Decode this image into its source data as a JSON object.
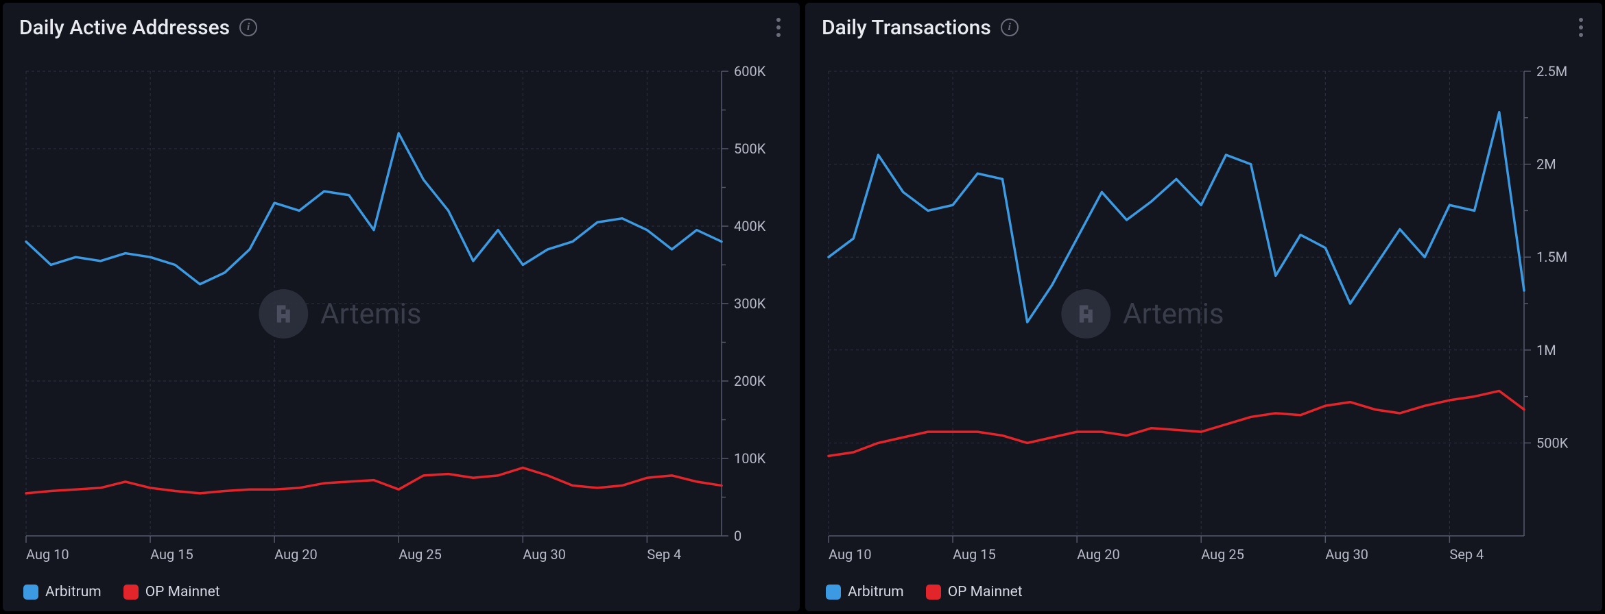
{
  "watermark_text": "Artemis",
  "panels": [
    {
      "title": "Daily Active Addresses",
      "chart": {
        "type": "line",
        "background_color": "#13151f",
        "grid_color": "#2e3140",
        "axis_color": "#555a6b",
        "tick_label_color": "#b8bcc8",
        "tick_fontsize": 20,
        "line_width": 3.5,
        "x_categories": [
          "Aug 10",
          "Aug 11",
          "Aug 12",
          "Aug 13",
          "Aug 14",
          "Aug 15",
          "Aug 16",
          "Aug 17",
          "Aug 18",
          "Aug 19",
          "Aug 20",
          "Aug 21",
          "Aug 22",
          "Aug 23",
          "Aug 24",
          "Aug 25",
          "Aug 26",
          "Aug 27",
          "Aug 28",
          "Aug 29",
          "Aug 30",
          "Aug 31",
          "Sep 1",
          "Sep 2",
          "Sep 3",
          "Sep 4",
          "Sep 5",
          "Sep 6",
          "Sep 7"
        ],
        "x_tick_indices": [
          0,
          5,
          10,
          15,
          20,
          25
        ],
        "x_tick_labels": [
          "Aug 10",
          "Aug 15",
          "Aug 20",
          "Aug 25",
          "Aug 30",
          "Sep 4"
        ],
        "ylim": [
          0,
          600000
        ],
        "y_ticks": [
          0,
          100000,
          200000,
          300000,
          400000,
          500000,
          600000
        ],
        "y_tick_labels": [
          "0",
          "100K",
          "200K",
          "300K",
          "400K",
          "500K",
          "600K"
        ],
        "series": [
          {
            "name": "Arbitrum",
            "color": "#3b9ae1",
            "values": [
              380000,
              350000,
              360000,
              355000,
              365000,
              360000,
              350000,
              325000,
              340000,
              370000,
              430000,
              420000,
              445000,
              440000,
              395000,
              520000,
              460000,
              420000,
              355000,
              395000,
              350000,
              370000,
              380000,
              405000,
              410000,
              395000,
              370000,
              395000,
              380000
            ]
          },
          {
            "name": "OP Mainnet",
            "color": "#e2252a",
            "values": [
              55000,
              58000,
              60000,
              62000,
              70000,
              62000,
              58000,
              55000,
              58000,
              60000,
              60000,
              62000,
              68000,
              70000,
              72000,
              60000,
              78000,
              80000,
              75000,
              78000,
              88000,
              78000,
              65000,
              62000,
              65000,
              75000,
              78000,
              70000,
              65000
            ]
          }
        ]
      }
    },
    {
      "title": "Daily Transactions",
      "chart": {
        "type": "line",
        "background_color": "#13151f",
        "grid_color": "#2e3140",
        "axis_color": "#555a6b",
        "tick_label_color": "#b8bcc8",
        "tick_fontsize": 20,
        "line_width": 3.5,
        "x_categories": [
          "Aug 10",
          "Aug 11",
          "Aug 12",
          "Aug 13",
          "Aug 14",
          "Aug 15",
          "Aug 16",
          "Aug 17",
          "Aug 18",
          "Aug 19",
          "Aug 20",
          "Aug 21",
          "Aug 22",
          "Aug 23",
          "Aug 24",
          "Aug 25",
          "Aug 26",
          "Aug 27",
          "Aug 28",
          "Aug 29",
          "Aug 30",
          "Aug 31",
          "Sep 1",
          "Sep 2",
          "Sep 3",
          "Sep 4",
          "Sep 5",
          "Sep 6",
          "Sep 7"
        ],
        "x_tick_indices": [
          0,
          5,
          10,
          15,
          20,
          25
        ],
        "x_tick_labels": [
          "Aug 10",
          "Aug 15",
          "Aug 20",
          "Aug 25",
          "Aug 30",
          "Sep 4"
        ],
        "ylim": [
          0,
          2500000
        ],
        "y_ticks": [
          500000,
          1000000,
          1500000,
          2000000,
          2500000
        ],
        "y_tick_labels": [
          "500K",
          "1M",
          "1.5M",
          "2M",
          "2.5M"
        ],
        "series": [
          {
            "name": "Arbitrum",
            "color": "#3b9ae1",
            "values": [
              1500000,
              1600000,
              2050000,
              1850000,
              1750000,
              1780000,
              1950000,
              1920000,
              1150000,
              1350000,
              1600000,
              1850000,
              1700000,
              1800000,
              1920000,
              1780000,
              2050000,
              2000000,
              1400000,
              1620000,
              1550000,
              1250000,
              1450000,
              1650000,
              1500000,
              1780000,
              1750000,
              2280000,
              1320000
            ]
          },
          {
            "name": "OP Mainnet",
            "color": "#e2252a",
            "values": [
              430000,
              450000,
              500000,
              530000,
              560000,
              560000,
              560000,
              540000,
              500000,
              530000,
              560000,
              560000,
              540000,
              580000,
              570000,
              560000,
              600000,
              640000,
              660000,
              650000,
              700000,
              720000,
              680000,
              660000,
              700000,
              730000,
              750000,
              780000,
              680000
            ]
          }
        ]
      }
    }
  ]
}
